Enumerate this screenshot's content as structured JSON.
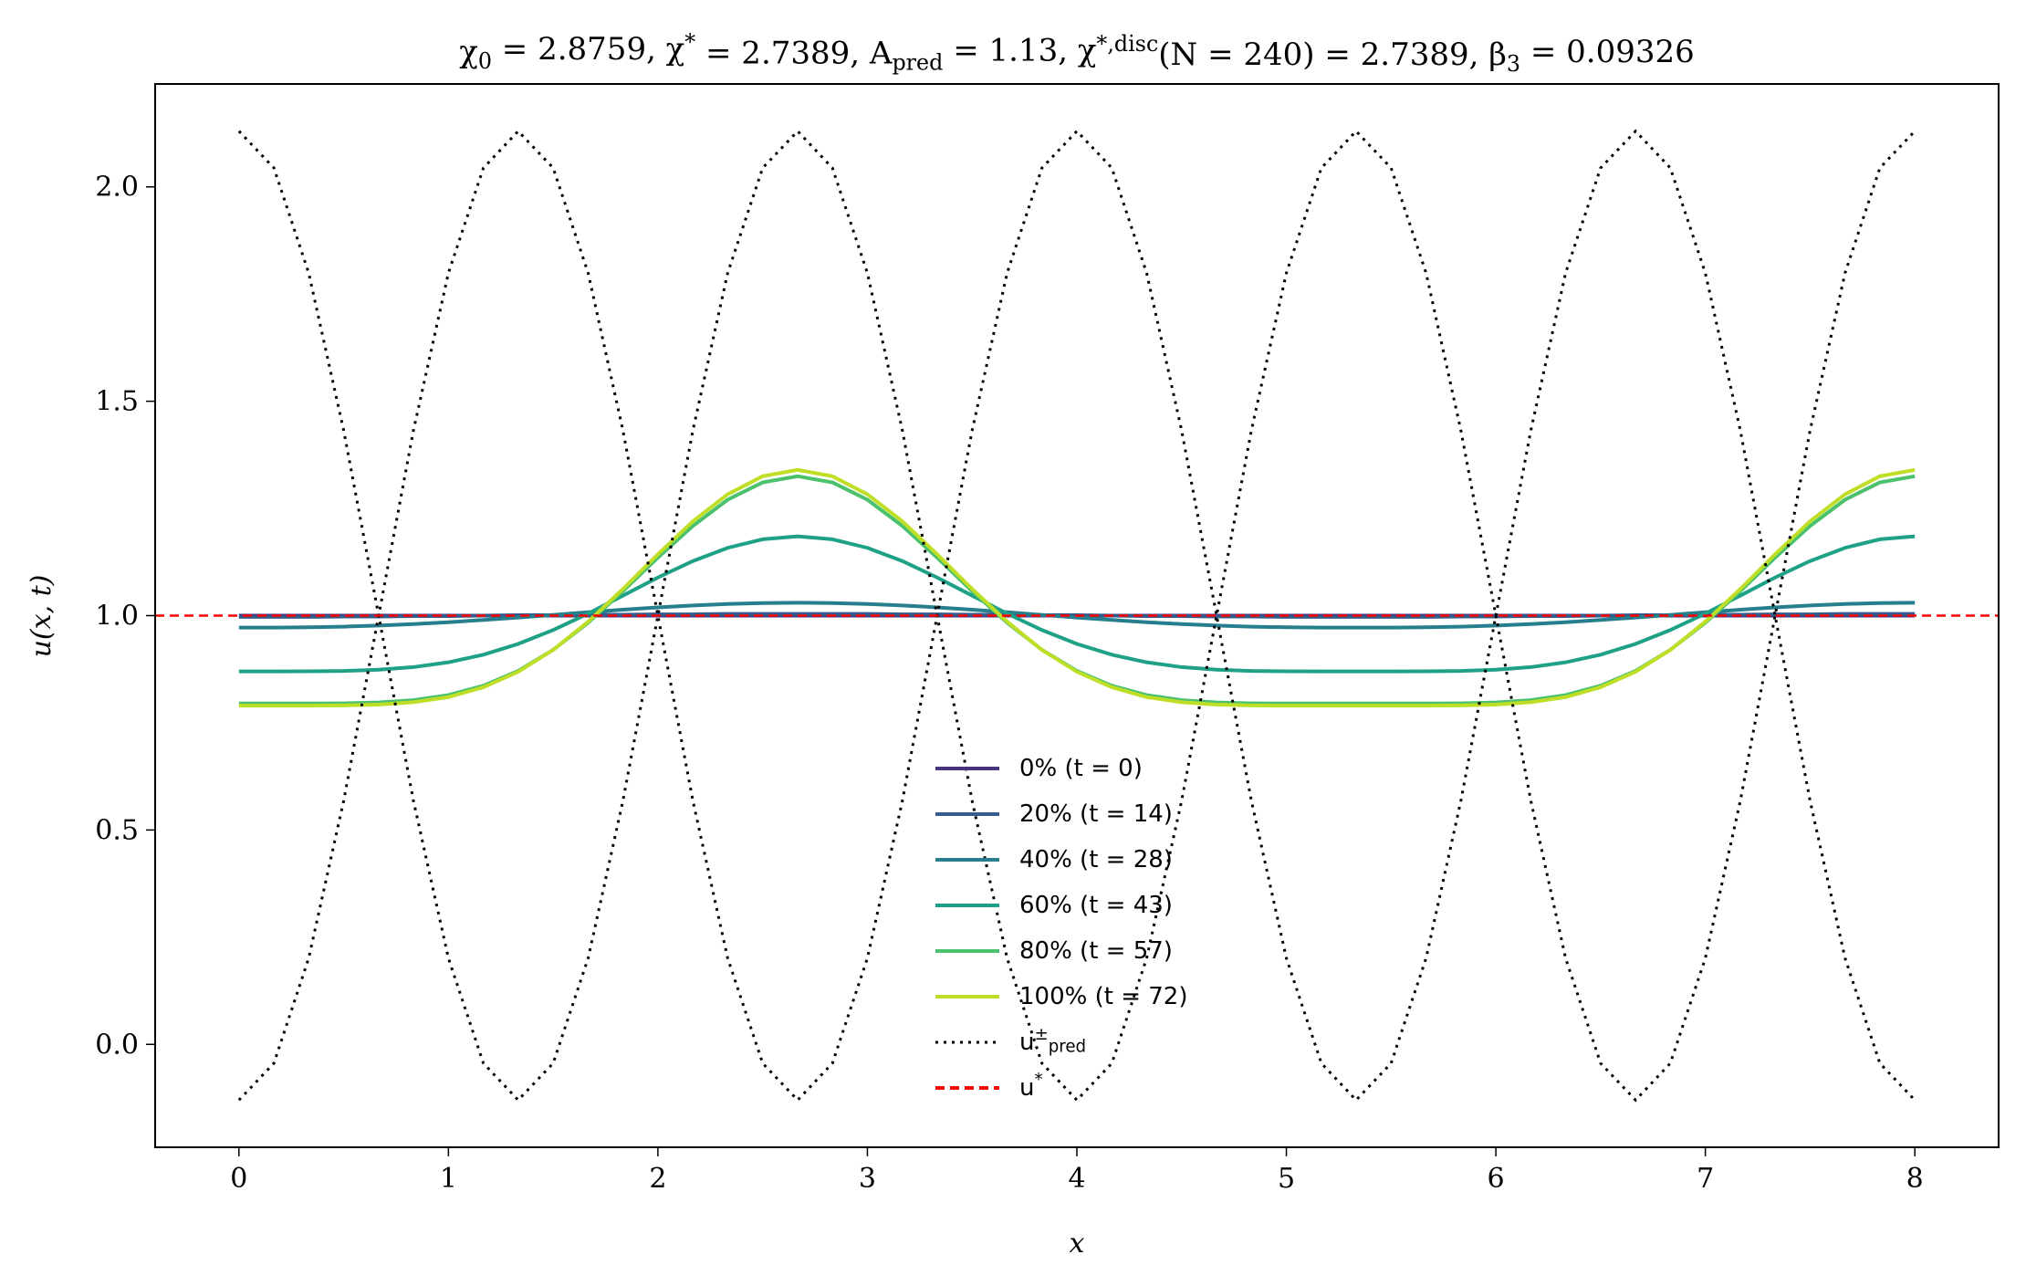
{
  "chart_data": {
    "type": "line",
    "title": "χ_{0} = 2.8759,  χ^{*} = 2.7389,  A_{pred} = 1.13,  χ^{*,disc}(N = 240) = 2.7389,  β_{3} = 0.09326",
    "xlabel": "x",
    "ylabel": "u(x, t)",
    "xlim": [
      -0.4,
      8.4
    ],
    "ylim": [
      -0.24,
      2.24
    ],
    "xticks": [
      0,
      1,
      2,
      3,
      4,
      5,
      6,
      7,
      8
    ],
    "yticks": [
      {
        "value": 0,
        "label": "0.0"
      },
      0.5,
      {
        "value": 1,
        "label": "1.0"
      },
      1.5,
      {
        "value": 2,
        "label": "2.0"
      }
    ],
    "legend": "lower center",
    "x": [
      0,
      0.167,
      0.333,
      0.5,
      0.667,
      0.833,
      1,
      1.167,
      1.333,
      1.5,
      1.667,
      1.833,
      2,
      2.167,
      2.333,
      2.5,
      2.667,
      2.833,
      3,
      3.167,
      3.333,
      3.5,
      3.667,
      3.833,
      4,
      4.167,
      4.333,
      4.5,
      4.667,
      4.833,
      5,
      5.167,
      5.333,
      5.5,
      5.667,
      5.833,
      6,
      6.167,
      6.333,
      6.5,
      6.667,
      6.833,
      7,
      7.167,
      7.333,
      7.5,
      7.667,
      7.833,
      8
    ],
    "series": [
      {
        "name": "0% (t = 0)",
        "color": "#46337e",
        "linestyle": "solid",
        "values": [
          1,
          1,
          1,
          1,
          1,
          1,
          1,
          1,
          1,
          1,
          1,
          1,
          1,
          1,
          1,
          1,
          1,
          1,
          1,
          1,
          1,
          1,
          1,
          1,
          1,
          1,
          1,
          1,
          1,
          1,
          1,
          1,
          1,
          1,
          1,
          1,
          1,
          1,
          1,
          1,
          1,
          1,
          1,
          1,
          1,
          1,
          1,
          1,
          1
        ]
      },
      {
        "name": "20% (t = 14)",
        "color": "#365c8d",
        "linestyle": "solid",
        "values": [
          0.997,
          0.997,
          0.997,
          0.998,
          0.998,
          0.999,
          0.999,
          1,
          1.001,
          1.001,
          1.002,
          1.002,
          1.003,
          1.003,
          1.004,
          1.004,
          1.004,
          1.004,
          1.004,
          1.003,
          1.003,
          1.002,
          1.002,
          1.001,
          1.001,
          1,
          0.999,
          0.999,
          0.998,
          0.998,
          0.997,
          0.997,
          0.997,
          0.997,
          0.997,
          0.998,
          0.998,
          0.999,
          0.999,
          1,
          1.001,
          1.001,
          1.002,
          1.002,
          1.003,
          1.003,
          1.004,
          1.004,
          1.004
        ]
      },
      {
        "name": "40% (t = 28)",
        "color": "#277f8e",
        "linestyle": "solid",
        "values": [
          0.972,
          0.9721,
          0.9728,
          0.9743,
          0.9768,
          0.9802,
          0.9846,
          0.9898,
          0.9955,
          1.0017,
          1.0079,
          1.0138,
          1.0192,
          1.0237,
          1.0272,
          1.0293,
          1.03,
          1.0293,
          1.0272,
          1.0237,
          1.0192,
          1.0138,
          1.0079,
          1.0017,
          0.9955,
          0.9898,
          0.9846,
          0.9802,
          0.9768,
          0.9743,
          0.9728,
          0.9721,
          0.972,
          0.9721,
          0.9728,
          0.9743,
          0.9768,
          0.9802,
          0.9846,
          0.9898,
          0.9955,
          1.0017,
          1.0079,
          1.0138,
          1.0192,
          1.0237,
          1.0272,
          1.0293,
          1.03
        ]
      },
      {
        "name": "60% (t = 43)",
        "color": "#1fa187",
        "linestyle": "solid",
        "values": [
          0.87,
          0.87,
          0.8702,
          0.871,
          0.8738,
          0.8799,
          0.8911,
          0.9088,
          0.934,
          0.9664,
          1.0048,
          1.0467,
          1.0889,
          1.1272,
          1.1581,
          1.178,
          1.185,
          1.178,
          1.1581,
          1.1272,
          1.0889,
          1.0467,
          1.0048,
          0.9664,
          0.934,
          0.9088,
          0.8911,
          0.8799,
          0.8738,
          0.871,
          0.8702,
          0.87,
          0.87,
          0.87,
          0.8702,
          0.871,
          0.8738,
          0.8799,
          0.8911,
          0.9088,
          0.934,
          0.9664,
          1.0048,
          1.0467,
          1.0889,
          1.1272,
          1.1581,
          1.178,
          1.185
        ]
      },
      {
        "name": "80% (t = 57)",
        "color": "#4ac16d",
        "linestyle": "solid",
        "values": [
          0.795,
          0.795,
          0.795,
          0.7955,
          0.7974,
          0.8028,
          0.8147,
          0.8364,
          0.8711,
          0.9203,
          0.9835,
          1.0572,
          1.1353,
          1.2091,
          1.2704,
          1.3107,
          1.325,
          1.3107,
          1.2704,
          1.2091,
          1.1353,
          1.0572,
          0.9835,
          0.9203,
          0.8711,
          0.8364,
          0.8147,
          0.8028,
          0.7974,
          0.7955,
          0.795,
          0.795,
          0.795,
          0.795,
          0.795,
          0.7955,
          0.7974,
          0.8028,
          0.8147,
          0.8364,
          0.8711,
          0.9203,
          0.9835,
          1.0572,
          1.1353,
          1.2091,
          1.2704,
          1.3107,
          1.325
        ]
      },
      {
        "name": "100% (t = 72)",
        "color": "#bfdf27",
        "linestyle": "solid",
        "values": [
          0.79,
          0.79,
          0.79,
          0.7905,
          0.7925,
          0.798,
          0.81,
          0.833,
          0.869,
          0.92,
          0.986,
          1.062,
          1.143,
          1.22,
          1.283,
          1.325,
          1.34,
          1.325,
          1.283,
          1.22,
          1.143,
          1.062,
          0.986,
          0.92,
          0.869,
          0.833,
          0.81,
          0.798,
          0.7925,
          0.7905,
          0.79,
          0.79,
          0.79,
          0.79,
          0.79,
          0.7905,
          0.7925,
          0.798,
          0.81,
          0.833,
          0.869,
          0.92,
          0.986,
          1.062,
          1.143,
          1.22,
          1.283,
          1.325,
          1.34
        ]
      },
      {
        "name": "u^{±}_{pred}",
        "color": "#000000",
        "linestyle": "dotted",
        "values": [
          2.13,
          2.044,
          1.799,
          1.432,
          1,
          0.568,
          0.201,
          -0.044,
          -0.13,
          -0.044,
          0.201,
          0.568,
          1,
          1.432,
          1.799,
          2.044,
          2.13,
          2.044,
          1.799,
          1.432,
          1,
          0.568,
          0.201,
          -0.044,
          -0.13,
          -0.044,
          0.201,
          0.568,
          1,
          1.432,
          1.799,
          2.044,
          2.13,
          2.044,
          1.799,
          1.432,
          1,
          0.568,
          0.201,
          -0.044,
          -0.13,
          -0.044,
          0.201,
          0.568,
          1,
          1.432,
          1.799,
          2.044,
          2.13
        ],
        "values2": [
          -0.13,
          -0.044,
          0.201,
          0.568,
          1,
          1.432,
          1.799,
          2.044,
          2.13,
          2.044,
          1.799,
          1.432,
          1,
          0.568,
          0.201,
          -0.044,
          -0.13,
          -0.044,
          0.201,
          0.568,
          1,
          1.432,
          1.799,
          2.044,
          2.13,
          2.044,
          1.799,
          1.432,
          1,
          0.568,
          0.201,
          -0.044,
          -0.13,
          -0.044,
          0.201,
          0.568,
          1,
          1.432,
          1.799,
          2.044,
          2.13,
          2.044,
          1.799,
          1.432,
          1,
          0.568,
          0.201,
          -0.044,
          -0.13
        ]
      }
    ],
    "hlines": [
      {
        "name": "u^{*}",
        "y": 1,
        "color": "#ff0000",
        "linestyle": "dashed"
      }
    ]
  }
}
